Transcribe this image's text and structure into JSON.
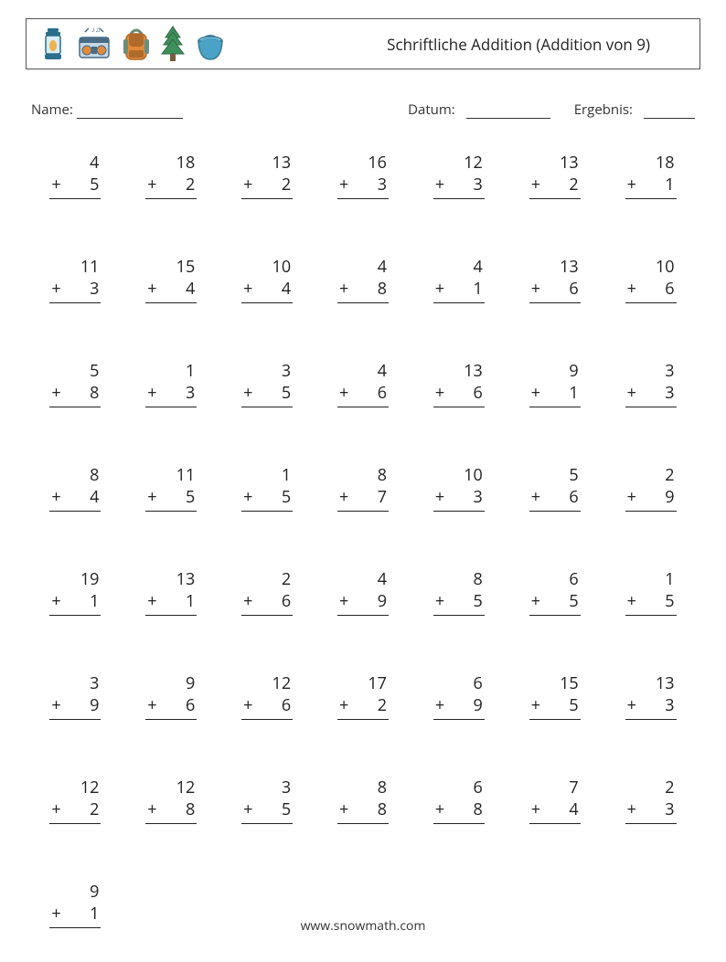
{
  "header": {
    "title": "Schriftliche Addition (Addition von 9)",
    "icons": [
      "lantern-icon",
      "boombox-icon",
      "backpack-icon",
      "pine-tree-icon",
      "bucket-icon"
    ]
  },
  "meta": {
    "name_label": "Name:",
    "date_label": "Datum:",
    "score_label": "Ergebnis:"
  },
  "style": {
    "page_bg": "#ffffff",
    "text_color": "#333333",
    "border_color": "#555555",
    "rule_color": "#222222",
    "font_family": "Segoe UI / Open Sans / Helvetica",
    "title_fontsize_pt": 13,
    "meta_fontsize_pt": 11,
    "problem_fontsize_pt": 14,
    "grid_columns": 7,
    "grid_rows": 8,
    "icon_palette": {
      "lantern_body": "#d7ecf4",
      "lantern_frame": "#2b6f8c",
      "lantern_flame": "#f2b24a",
      "boombox_body": "#c6d8e6",
      "boombox_dark": "#4a6b85",
      "boombox_accent": "#e28a3a",
      "backpack_body": "#e28a3a",
      "backpack_flap": "#b06a2a",
      "backpack_strap": "#6b8e7b",
      "tree_green": "#3f8f5a",
      "tree_dark": "#2f6b44",
      "tree_trunk": "#7a5a3a",
      "bucket_body": "#4aa3c7",
      "bucket_light": "#8fcbe0",
      "bucket_handle": "#3a7a94"
    }
  },
  "problems": [
    {
      "a": 4,
      "b": 5
    },
    {
      "a": 18,
      "b": 2
    },
    {
      "a": 13,
      "b": 2
    },
    {
      "a": 16,
      "b": 3
    },
    {
      "a": 12,
      "b": 3
    },
    {
      "a": 13,
      "b": 2
    },
    {
      "a": 18,
      "b": 1
    },
    {
      "a": 11,
      "b": 3
    },
    {
      "a": 15,
      "b": 4
    },
    {
      "a": 10,
      "b": 4
    },
    {
      "a": 4,
      "b": 8
    },
    {
      "a": 4,
      "b": 1
    },
    {
      "a": 13,
      "b": 6
    },
    {
      "a": 10,
      "b": 6
    },
    {
      "a": 5,
      "b": 8
    },
    {
      "a": 1,
      "b": 3
    },
    {
      "a": 3,
      "b": 5
    },
    {
      "a": 4,
      "b": 6
    },
    {
      "a": 13,
      "b": 6
    },
    {
      "a": 9,
      "b": 1
    },
    {
      "a": 3,
      "b": 3
    },
    {
      "a": 8,
      "b": 4
    },
    {
      "a": 11,
      "b": 5
    },
    {
      "a": 1,
      "b": 5
    },
    {
      "a": 8,
      "b": 7
    },
    {
      "a": 10,
      "b": 3
    },
    {
      "a": 5,
      "b": 6
    },
    {
      "a": 2,
      "b": 9
    },
    {
      "a": 19,
      "b": 1
    },
    {
      "a": 13,
      "b": 1
    },
    {
      "a": 2,
      "b": 6
    },
    {
      "a": 4,
      "b": 9
    },
    {
      "a": 8,
      "b": 5
    },
    {
      "a": 6,
      "b": 5
    },
    {
      "a": 1,
      "b": 5
    },
    {
      "a": 3,
      "b": 9
    },
    {
      "a": 9,
      "b": 6
    },
    {
      "a": 12,
      "b": 6
    },
    {
      "a": 17,
      "b": 2
    },
    {
      "a": 6,
      "b": 9
    },
    {
      "a": 15,
      "b": 5
    },
    {
      "a": 13,
      "b": 3
    },
    {
      "a": 12,
      "b": 2
    },
    {
      "a": 12,
      "b": 8
    },
    {
      "a": 3,
      "b": 5
    },
    {
      "a": 8,
      "b": 8
    },
    {
      "a": 6,
      "b": 8
    },
    {
      "a": 7,
      "b": 4
    },
    {
      "a": 2,
      "b": 3
    },
    {
      "a": 9,
      "b": 1
    }
  ],
  "footer": {
    "text": "www.snowmath.com"
  }
}
